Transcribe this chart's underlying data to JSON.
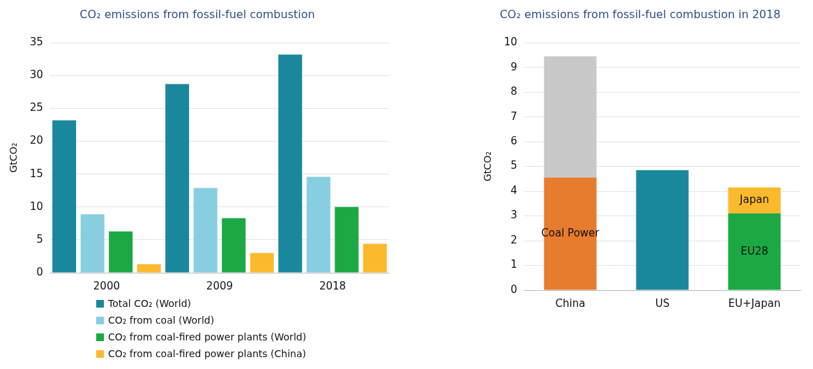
{
  "chart_data": [
    {
      "type": "bar",
      "title": "CO₂ emissions from fossil-fuel combustion",
      "ylabel": "GtCO₂",
      "categories": [
        "2000",
        "2009",
        "2018"
      ],
      "ylim": [
        0,
        35
      ],
      "yticks": [
        0,
        5,
        10,
        15,
        20,
        25,
        30,
        35
      ],
      "grid": "y",
      "legend": "bottom",
      "series": [
        {
          "name": "Total CO₂ (World)",
          "color": "#1a889c",
          "values": [
            23.2,
            28.7,
            33.2
          ]
        },
        {
          "name": "CO₂ from coal (World)",
          "color": "#87cfe0",
          "values": [
            8.9,
            12.9,
            14.6
          ]
        },
        {
          "name": "CO₂ from coal-fired power plants (World)",
          "color": "#1ca843",
          "values": [
            6.3,
            8.3,
            10.0
          ]
        },
        {
          "name": "CO₂ from coal-fired power plants (China)",
          "color": "#fbb92e",
          "values": [
            1.3,
            3.0,
            4.4
          ]
        }
      ]
    },
    {
      "type": "bar",
      "title": "CO₂ emissions from fossil-fuel combustion in 2018",
      "ylabel": "GtCO₂",
      "categories": [
        "China",
        "US",
        "EU+Japan"
      ],
      "ylim": [
        0,
        10
      ],
      "yticks": [
        0,
        1,
        2,
        3,
        4,
        5,
        6,
        7,
        8,
        9,
        10
      ],
      "grid": "y",
      "stacked": true,
      "series": [
        {
          "name": "Coal Power",
          "color": "#e77b2e",
          "values": [
            4.55,
            null,
            null
          ]
        },
        {
          "color": "#c8c8c8",
          "values": [
            4.9,
            null,
            null
          ]
        },
        {
          "color": "#1a889c",
          "values": [
            null,
            4.85,
            null
          ]
        },
        {
          "name": "EU28",
          "color": "#1ca843",
          "values": [
            null,
            null,
            3.1
          ]
        },
        {
          "name": "Japan",
          "color": "#fbb92e",
          "values": [
            null,
            null,
            1.05
          ]
        }
      ]
    }
  ]
}
